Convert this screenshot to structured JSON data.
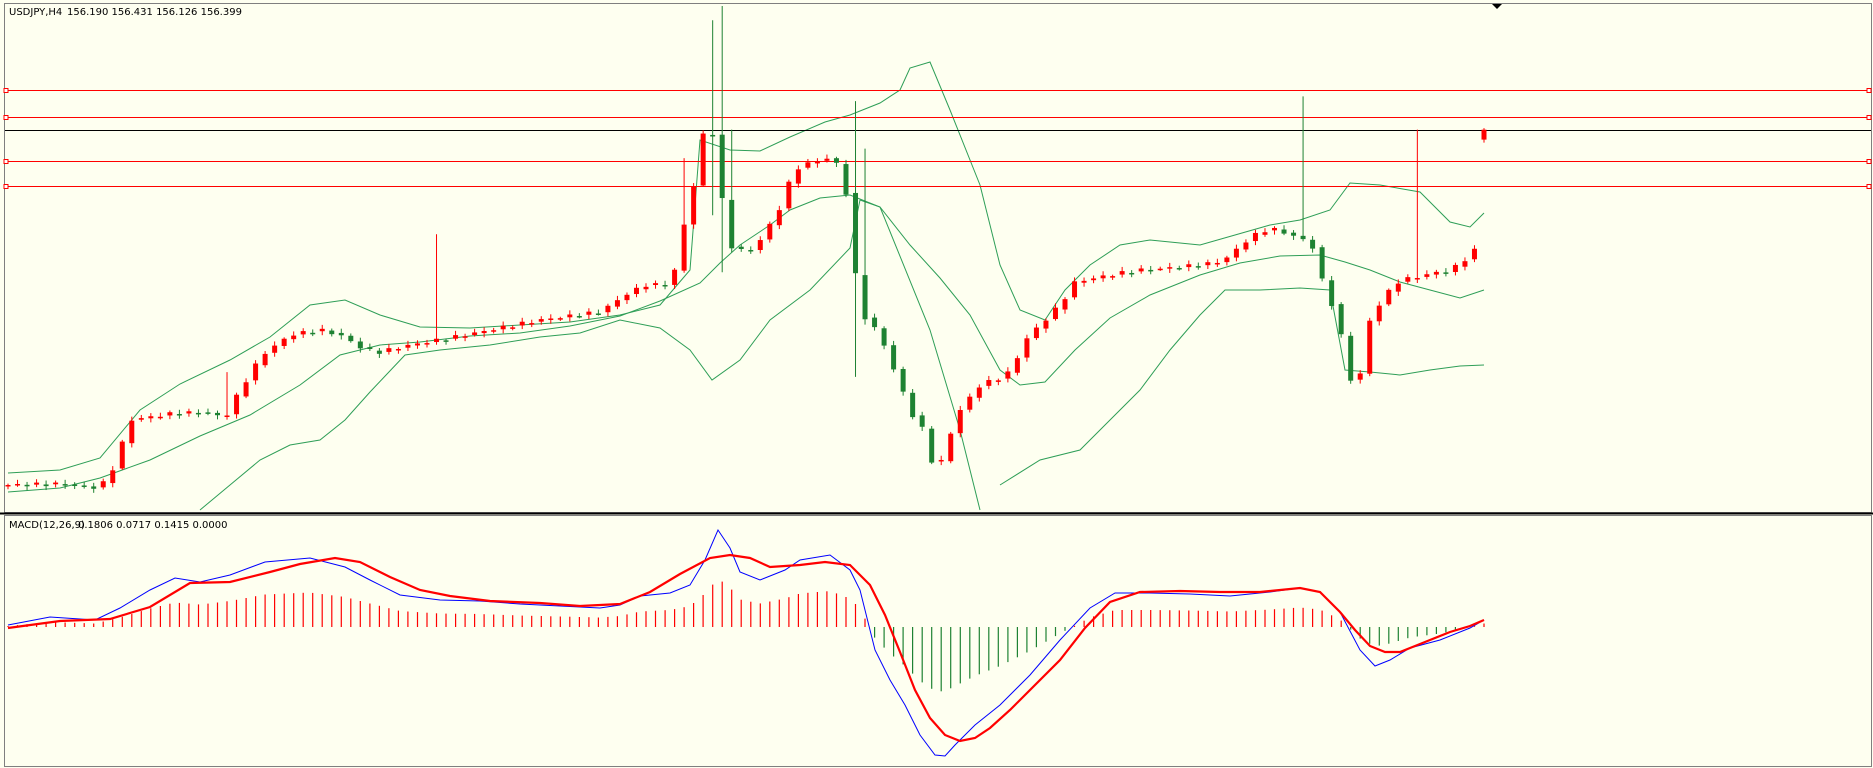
{
  "window": {
    "title": "USDJPY,H4",
    "ohlc_text": "156.190 156.431 156.126 156.399"
  },
  "macd": {
    "label": "MACD(12,26,9)",
    "values_text": "0.1806 0.0717 0.1415 0.0000"
  },
  "colors": {
    "background": "#fefff0",
    "bull_candle": "#ff0000",
    "bear_candle": "#1e8232",
    "bollinger": "#2e9e57",
    "hline": "#ff0000",
    "current_line": "#000000",
    "macd_main": "#0000ff",
    "macd_signal": "#ff0000",
    "hist_pos": "#ff0000",
    "hist_neg": "#1e8232"
  },
  "chart_data": [
    {
      "type": "candlestick",
      "symbol": "USDJPY",
      "timeframe": "H4",
      "title": "USDJPY,H4",
      "last_bar": {
        "open": 156.19,
        "high": 156.431,
        "low": 156.126,
        "close": 156.399
      },
      "price_axis_visible": false,
      "ylim_approx": [
        148.4,
        159.0
      ],
      "indicators": [
        "Bollinger Bands (upper, middle, lower)"
      ],
      "horizontal_levels": [
        157.24,
        156.67,
        155.73,
        155.21
      ],
      "current_price_line": 156.399,
      "candle_count": 156,
      "grid": false
    },
    {
      "type": "line+histogram",
      "title": "MACD(12,26,9)",
      "values": {
        "main": 0.1806,
        "signal": 0.0717,
        "histogram": 0.1415,
        "extra": 0.0
      },
      "series": [
        {
          "name": "MACD main",
          "color": "blue"
        },
        {
          "name": "Signal",
          "color": "red"
        },
        {
          "name": "Histogram",
          "color": "red/green bars"
        }
      ],
      "grid": false
    }
  ]
}
